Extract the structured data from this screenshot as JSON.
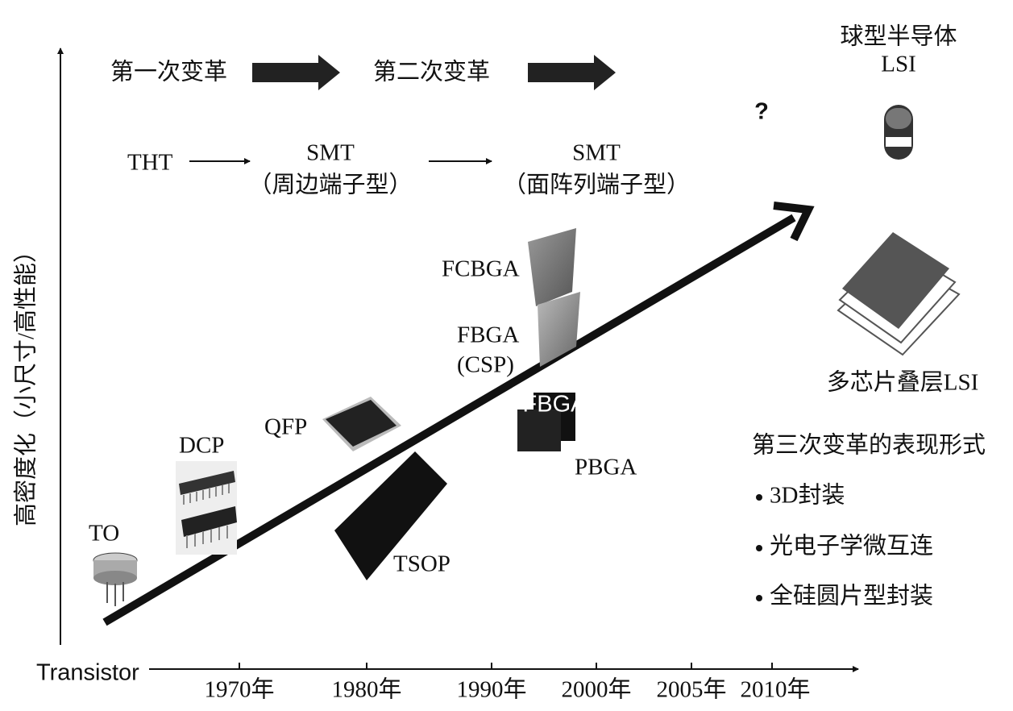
{
  "y_axis_label": "高密度化（小尺寸/高性能）",
  "x_axis": {
    "start": "Transistor",
    "ticks": [
      "1970年",
      "1980年",
      "1990年",
      "2000年",
      "2005年",
      "2010年"
    ]
  },
  "revolutions": {
    "first": "第一次变革",
    "second": "第二次变革"
  },
  "tech": {
    "tht": "THT",
    "smt1": {
      "name": "SMT",
      "note": "（周边端子型）"
    },
    "smt2": {
      "name": "SMT",
      "note": "（面阵列端子型）"
    }
  },
  "unknown": "?",
  "ball_lsi": {
    "line1": "球型半导体",
    "line2": "LSI"
  },
  "packages": {
    "to": "TO",
    "dcp": "DCP",
    "qfp": "QFP",
    "tsop": "TSOP",
    "fbga": "FBGA",
    "csp": "(CSP)",
    "fcbga": "FCBGA",
    "pbga": "PBGA",
    "pbga_marking": "FBGA",
    "stacked": "多芯片叠层LSI"
  },
  "third": {
    "title": "第三次变革的表现形式",
    "items": [
      "3D封装",
      "光电子学微互连",
      "全硅圆片型封装"
    ]
  }
}
